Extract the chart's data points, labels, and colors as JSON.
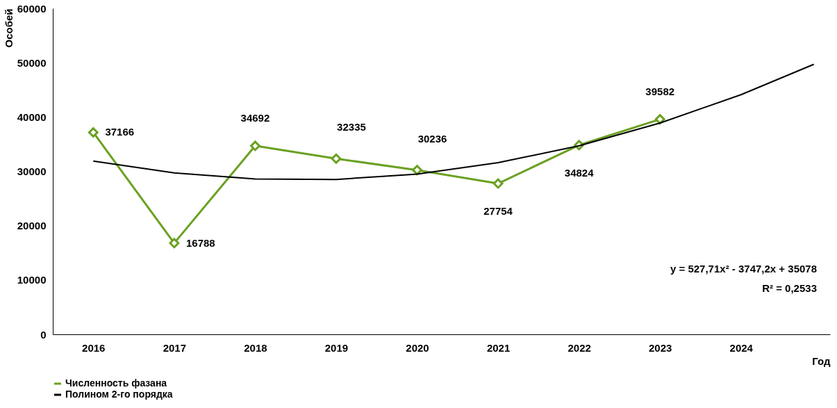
{
  "chart_data": {
    "type": "line",
    "ylabel": "Особей",
    "xlabel": "Год",
    "x": [
      2016,
      2017,
      2018,
      2019,
      2020,
      2021,
      2022,
      2023
    ],
    "xlim": [
      2015.5,
      2025.1
    ],
    "xticks": [
      2016,
      2017,
      2018,
      2019,
      2020,
      2021,
      2022,
      2023,
      2024
    ],
    "ylim": [
      0,
      60000
    ],
    "yticks": [
      0,
      10000,
      20000,
      30000,
      40000,
      50000,
      60000
    ],
    "grid": false,
    "legend": "bottom",
    "series": [
      {
        "name": "Численность фазана",
        "color": "#6aa121",
        "marker": "diamond",
        "values": [
          37166,
          16788,
          34692,
          32335,
          30236,
          27754,
          34824,
          39582
        ],
        "value_labels": [
          "37166",
          "16788",
          "34692",
          "32335",
          "30236",
          "27754",
          "34824",
          "39582"
        ]
      },
      {
        "name": "Полином 2-го порядка",
        "color": "#000000",
        "marker": "none",
        "x": [
          2016,
          2017,
          2018,
          2019,
          2020,
          2021,
          2022,
          2023,
          2024,
          2024.9
        ],
        "values": [
          31900,
          29700,
          28600,
          28500,
          29500,
          31600,
          34700,
          38900,
          44100,
          49700
        ]
      }
    ],
    "annotations": [
      "y = 527,71x² - 3747,2x + 35078",
      "R² = 0,2533"
    ]
  }
}
